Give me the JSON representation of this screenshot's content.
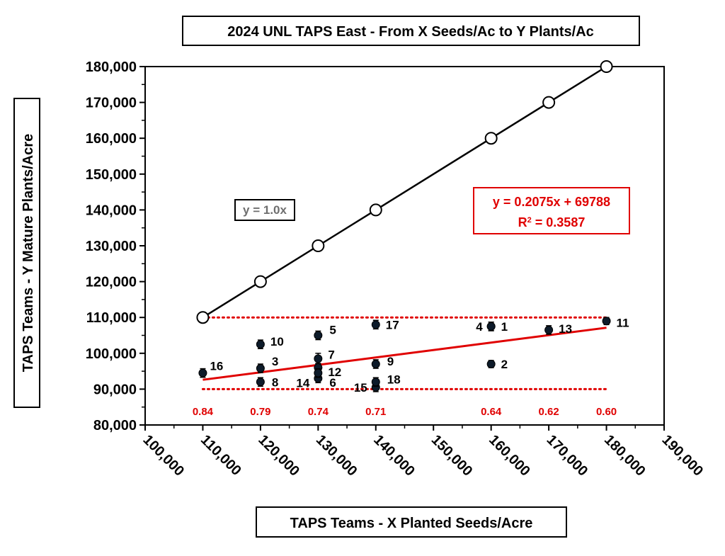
{
  "chart_data": {
    "type": "scatter",
    "title": "2024 UNL TAPS East - From X Seeds/Ac to Y Plants/Ac",
    "xlabel": "TAPS Teams - X Planted Seeds/Acre",
    "ylabel": "TAPS Teams - Y Mature Plants/Acre",
    "xlim": [
      100000,
      190000
    ],
    "ylim": [
      80000,
      180000
    ],
    "x_ticks": [
      "100,000",
      "110,000",
      "120,000",
      "130,000",
      "140,000",
      "150,000",
      "160,000",
      "170,000",
      "180,000",
      "190,000"
    ],
    "y_ticks": [
      "80,000",
      "90,000",
      "100,000",
      "110,000",
      "120,000",
      "130,000",
      "140,000",
      "150,000",
      "160,000",
      "170,000",
      "180,000"
    ],
    "grid": false,
    "series": [
      {
        "name": "y = 1.0x",
        "type": "line",
        "marker": "open-circle",
        "color": "#000000",
        "x": [
          110000,
          120000,
          130000,
          140000,
          160000,
          170000,
          180000
        ],
        "y": [
          110000,
          120000,
          130000,
          140000,
          160000,
          170000,
          180000
        ]
      },
      {
        "type": "scatter",
        "marker": "filled-circle",
        "color": "#0d1b2a",
        "points": [
          {
            "label": "1",
            "x": 160000,
            "y": 107500,
            "err": 1200
          },
          {
            "label": "2",
            "x": 160000,
            "y": 97000,
            "err": 1000
          },
          {
            "label": "3",
            "x": 120000,
            "y": 95800,
            "err": 1200
          },
          {
            "label": "4",
            "x": 160000,
            "y": 107500,
            "err": 1200
          },
          {
            "label": "5",
            "x": 130000,
            "y": 105000,
            "err": 1200
          },
          {
            "label": "6",
            "x": 130000,
            "y": 93000,
            "err": 1200
          },
          {
            "label": "7",
            "x": 130000,
            "y": 98500,
            "err": 1500
          },
          {
            "label": "8",
            "x": 120000,
            "y": 92000,
            "err": 1200
          },
          {
            "label": "9",
            "x": 140000,
            "y": 97000,
            "err": 1200
          },
          {
            "label": "10",
            "x": 120000,
            "y": 102500,
            "err": 1200
          },
          {
            "label": "11",
            "x": 180000,
            "y": 109000,
            "err": 1000
          },
          {
            "label": "12",
            "x": 130000,
            "y": 96000,
            "err": 1200
          },
          {
            "label": "13",
            "x": 170000,
            "y": 106500,
            "err": 1200
          },
          {
            "label": "14",
            "x": 130000,
            "y": 94500,
            "err": 1200
          },
          {
            "label": "15",
            "x": 140000,
            "y": 90500,
            "err": 1200
          },
          {
            "label": "16",
            "x": 110000,
            "y": 94500,
            "err": 1200
          },
          {
            "label": "17",
            "x": 140000,
            "y": 108000,
            "err": 1200
          },
          {
            "label": "18",
            "x": 140000,
            "y": 92000,
            "err": 1200
          }
        ]
      }
    ],
    "trendline": {
      "color": "#e00000",
      "slope": 0.2075,
      "intercept": 69788,
      "x_range": [
        110000,
        180000
      ],
      "equation_text": "y = 0.2075x + 69788",
      "r2_prefix": "R",
      "r2_sup": "2",
      "r2_value": " = 0.3587"
    },
    "reference_lines": [
      {
        "y": 110000,
        "x_range": [
          110000,
          180000
        ],
        "color": "#e00000",
        "style": "dotted"
      },
      {
        "y": 90000,
        "x_range": [
          110000,
          180000
        ],
        "color": "#e00000",
        "style": "dotted"
      }
    ],
    "ratio_labels": [
      {
        "x": 110000,
        "text": "0.84"
      },
      {
        "x": 120000,
        "text": "0.79"
      },
      {
        "x": 130000,
        "text": "0.74"
      },
      {
        "x": 140000,
        "text": "0.71"
      },
      {
        "x": 160000,
        "text": "0.64"
      },
      {
        "x": 170000,
        "text": "0.62"
      },
      {
        "x": 180000,
        "text": "0.60"
      }
    ],
    "identity_label": "y = 1.0x"
  }
}
